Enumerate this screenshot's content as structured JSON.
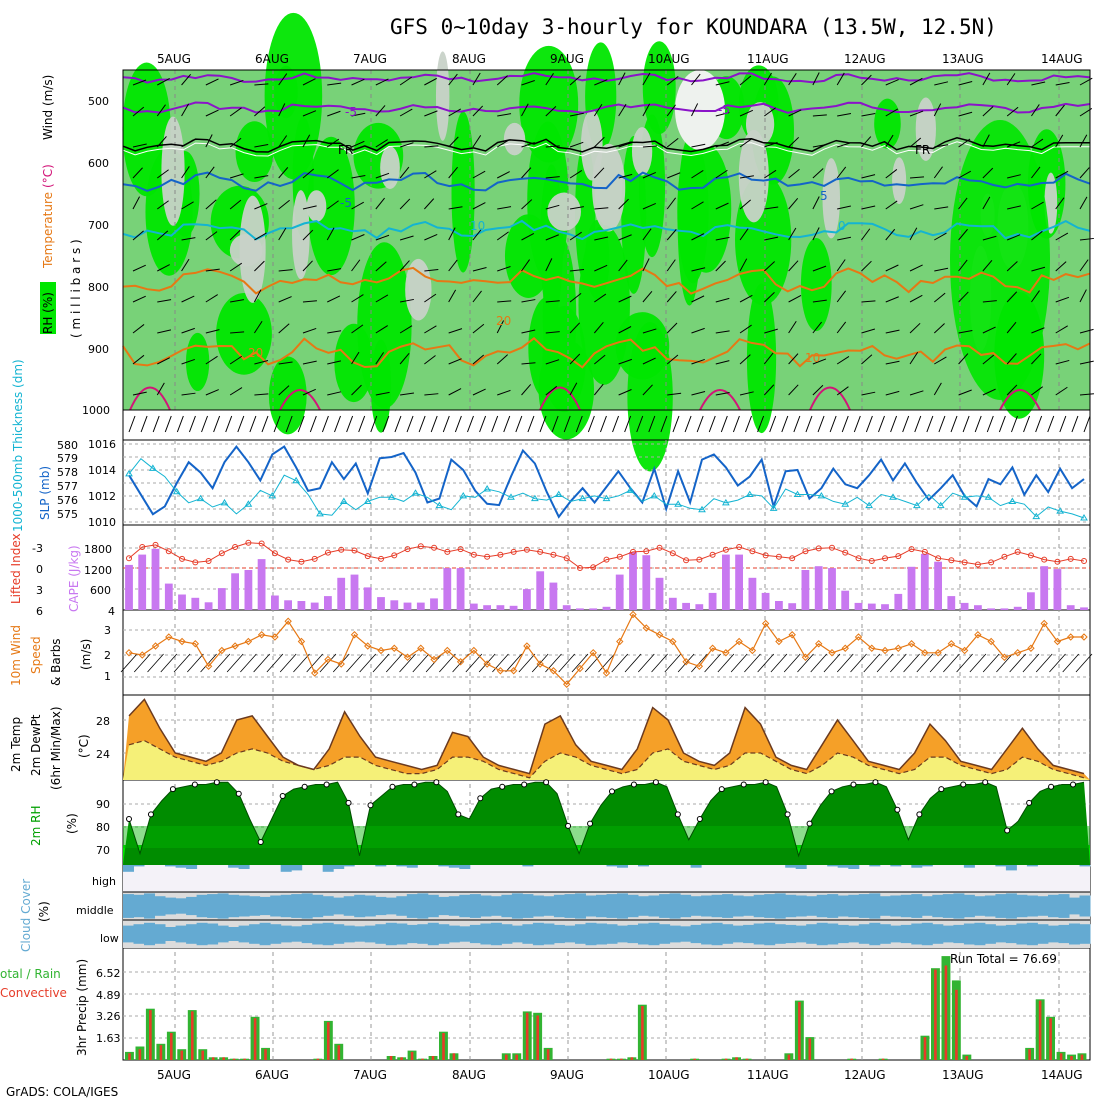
{
  "title": "GFS 0~10day 3-hourly for KOUNDARA (13.5W, 12.5N)",
  "footer": "GrADS: COLA/IGES",
  "dates": [
    "5AUG",
    "6AUG",
    "7AUG",
    "8AUG",
    "9AUG",
    "10AUG",
    "11AUG",
    "12AUG",
    "13AUG",
    "14AUG"
  ],
  "colors": {
    "rh_dark": "#00a000",
    "rh_mid": "#00e600",
    "rh_light": "#78d278",
    "rh_pale": "#c8d2c8",
    "purple": "#8a14c8",
    "orange": "#e67814",
    "cyan": "#14b4d2",
    "blue": "#1464c8",
    "magenta": "#d21478",
    "cape": "#c878f0",
    "tempfill": "#f5a028",
    "dewfill": "#f5f078",
    "cloud": "#64aad2",
    "cloudbg": "#dcdcdc",
    "rain": "#32b432",
    "conv": "#e63c28"
  },
  "panels": {
    "upper": {
      "ylabel_rh": "RH (%)",
      "ylabel_temp": "Temperature",
      "ylabel_tunit": "(°C)",
      "ylabel_wind": "Wind (m/s)",
      "ylabel_mb": "( m i l l i b a r s )",
      "yticks": [
        "500",
        "600",
        "700",
        "800",
        "900",
        "1000"
      ],
      "contour_labels": [
        "-5",
        "-5",
        "FR",
        "FR",
        "-5",
        "5",
        "10",
        "0",
        "10",
        "20",
        "20",
        "20",
        "10"
      ]
    },
    "slp": {
      "ylabel_thk": "1000-500mb Thickness (dm)",
      "ylabel_slp": "SLP (mb)",
      "thk_ticks": [
        "580",
        "579",
        "578",
        "577",
        "576",
        "575"
      ],
      "slp_ticks": [
        "1016",
        "1014",
        "1012",
        "1010"
      ]
    },
    "cape": {
      "ylabel_li": "Lifted Index",
      "ylabel_cape": "CAPE (J/kg)",
      "li_ticks": [
        "-3",
        "0",
        "3",
        "6"
      ],
      "cape_ticks": [
        "1800",
        "1200",
        "600",
        "4"
      ]
    },
    "wind10": {
      "ylabel1": "10m Wind",
      "ylabel2": "Speed",
      "ylabel3": "& Barbs",
      "ylabel4": "(m/s)",
      "ticks": [
        "3",
        "2",
        "1"
      ]
    },
    "temp": {
      "ylabel1": "2m Temp",
      "ylabel2": "2m DewPt",
      "ylabel3": "(6hr Min/Max)",
      "ylabel4": "(°C)",
      "ticks": [
        "28",
        "24"
      ]
    },
    "rh": {
      "ylabel1": "2m RH",
      "ylabel2": "(%)",
      "ticks": [
        "90",
        "80",
        "70"
      ]
    },
    "cloud": {
      "ylabel1": "Cloud Cover",
      "ylabel2": "(%)",
      "levels": [
        "high",
        "middle",
        "low"
      ]
    },
    "precip": {
      "ylabel1": "otal / Rain",
      "ylabel2": "Convective",
      "ylabel3": "3hr Precip (mm)",
      "ticks": [
        "6.52",
        "4.89",
        "3.26",
        "1.63"
      ],
      "run_total": "Run Total = 76.69"
    }
  },
  "chart_data": {
    "type": "meteogram",
    "x": "3-hourly steps, 4 Aug 21Z to 14 Aug 21Z",
    "series": [
      {
        "name": "SLP (mb)",
        "values": [
          1013.6,
          1012.1,
          1010.6,
          1011.2,
          1013.0,
          1014.6,
          1013.8,
          1012.6,
          1014.6,
          1015.8,
          1014.6,
          1013.2,
          1015.2,
          1015.8,
          1014.2,
          1012.4,
          1012.6,
          1014.6,
          1013.3,
          1014.5,
          1012.2,
          1014.9,
          1015.0,
          1015.3,
          1013.8,
          1011.5,
          1011.8,
          1014.8,
          1014.0,
          1012.4,
          1011.4,
          1011.3,
          1013.5,
          1015.5,
          1014.5,
          1012.3,
          1010.4,
          1011.6,
          1012.6,
          1011.5,
          1012.7,
          1013.9,
          1012.6,
          1011.5,
          1014.1,
          1011.0,
          1013.9,
          1011.5,
          1014.8,
          1015.2,
          1014.2,
          1012.8,
          1013.5,
          1014.8,
          1011.2,
          1013.9,
          1014.0,
          1011.8,
          1012.6,
          1014.1,
          1012.9,
          1012.6,
          1013.6,
          1014.8,
          1013.2,
          1014.5,
          1013.0,
          1011.7,
          1012.6,
          1013.6,
          1012.0,
          1011.2,
          1013.3,
          1012.9,
          1014.2,
          1012.1,
          1013.6,
          1012.3,
          1014.1,
          1012.6,
          1013.3
        ]
      },
      {
        "name": "1000-500mb Thickness (dm)",
        "values": [
          578.2,
          579.3,
          578.6,
          578.0,
          576.9,
          576.1,
          576.4,
          575.8,
          576.1,
          575.3,
          576.0,
          577.0,
          576.6,
          578.1,
          577.7,
          576.7,
          575.3,
          575.2,
          576.2,
          575.6,
          576.2,
          576.5,
          576.5,
          576.2,
          576.8,
          576.5,
          575.9,
          575.6,
          576.6,
          576.5,
          577.1,
          576.9,
          576.5,
          576.8,
          576.4,
          576.3,
          576.7,
          576.2,
          576.4,
          576.6,
          576.4,
          576.6,
          577.0,
          576.2,
          576.6,
          576.0,
          576.0,
          575.7,
          575.6,
          576.4,
          576.1,
          576.3,
          576.7,
          576.6,
          575.7,
          577.1,
          576.7,
          576.7,
          576.6,
          576.2,
          576.0,
          576.5,
          575.9,
          576.7,
          576.5,
          576.2,
          575.9,
          576.7,
          575.9,
          576.8,
          576.5,
          576.6,
          576.5,
          575.9,
          576.2,
          576.0,
          575.1,
          575.8,
          575.5,
          575.3,
          575.0
        ]
      },
      {
        "name": "CAPE (J/kg)",
        "values": [
          1400,
          1720,
          1900,
          820,
          480,
          380,
          240,
          680,
          1140,
          1240,
          1580,
          450,
          300,
          280,
          230,
          430,
          1000,
          1100,
          700,
          400,
          300,
          230,
          230,
          360,
          1300,
          1300,
          200,
          150,
          150,
          130,
          650,
          1200,
          850,
          150,
          50,
          50,
          100,
          1100,
          1800,
          1700,
          1000,
          380,
          220,
          180,
          530,
          1720,
          1720,
          1000,
          530,
          280,
          210,
          1240,
          1360,
          1300,
          600,
          220,
          200,
          180,
          500,
          1340,
          1740,
          1500,
          430,
          220,
          150,
          50,
          50,
          100,
          550,
          1360,
          1270,
          150,
          80
        ]
      },
      {
        "name": "Lifted Index",
        "values": [
          -1.4,
          -3.0,
          -3.3,
          -2.4,
          -1.3,
          -0.8,
          -1.0,
          -2.1,
          -3.0,
          -3.6,
          -3.5,
          -2.1,
          -1.2,
          -0.9,
          -1.3,
          -2.2,
          -2.6,
          -2.5,
          -1.7,
          -1.3,
          -1.8,
          -2.7,
          -3.1,
          -2.9,
          -2.3,
          -2.7,
          -1.9,
          -1.6,
          -1.9,
          -2.3,
          -2.6,
          -2.3,
          -1.9,
          -1.4,
          0.0,
          -0.1,
          -1.2,
          -1.6,
          -2.3,
          -2.4,
          -2.9,
          -2.1,
          -1.1,
          -1.2,
          -1.9,
          -2.6,
          -3.0,
          -2.4,
          -1.8,
          -1.6,
          -1.4,
          -2.4,
          -2.8,
          -2.9,
          -2.2,
          -1.4,
          -1.0,
          -1.4,
          -1.7,
          -2.7,
          -2.3,
          -1.4,
          -1.1,
          -0.8,
          -0.5,
          -0.8,
          -1.6,
          -2.3,
          -1.8,
          -1.2,
          -0.9,
          -1.3,
          -1.0
        ]
      },
      {
        "name": "10m Wind Speed (m/s)",
        "values": [
          2.1,
          2.0,
          2.4,
          2.8,
          2.6,
          2.5,
          1.5,
          2.2,
          2.4,
          2.6,
          2.9,
          2.8,
          3.5,
          2.6,
          1.2,
          1.8,
          1.6,
          2.9,
          2.4,
          2.2,
          2.3,
          1.9,
          2.3,
          1.8,
          2.2,
          1.7,
          2.2,
          1.6,
          1.3,
          1.3,
          2.4,
          1.6,
          1.3,
          0.7,
          1.4,
          2.1,
          1.2,
          2.6,
          3.8,
          3.2,
          2.9,
          2.6,
          1.7,
          1.5,
          2.3,
          2.1,
          2.6,
          2.2,
          3.4,
          2.6,
          2.9,
          1.9,
          2.5,
          2.1,
          2.3,
          2.8,
          2.3,
          2.2,
          2.3,
          2.5,
          2.1,
          2.1,
          2.5,
          2.2,
          2.9,
          2.6,
          1.9,
          2.1,
          2.3,
          3.4,
          2.6,
          2.8,
          2.8
        ]
      },
      {
        "name": "2m Temp (°C)",
        "values": [
          28.5,
          30.5,
          27.0,
          24.0,
          23.5,
          23.0,
          24.0,
          28.0,
          28.5,
          26.0,
          23.5,
          22.5,
          22.0,
          24.5,
          29.0,
          26.0,
          23.5,
          23.0,
          22.5,
          22.0,
          22.5,
          26.5,
          26.0,
          23.5,
          22.5,
          22.0,
          21.5,
          27.5,
          28.5,
          25.0,
          23.0,
          22.5,
          22.0,
          24.5,
          29.5,
          28.0,
          24.0,
          23.0,
          22.5,
          24.0,
          29.5,
          27.5,
          23.5,
          22.5,
          22.0,
          25.0,
          28.0,
          25.5,
          23.0,
          22.5,
          22.0,
          24.0,
          27.5,
          25.5,
          23.0,
          22.5,
          22.0,
          24.5,
          27.0,
          24.5,
          22.5,
          22.0,
          21.5
        ]
      },
      {
        "name": "2m DewPt (°C)",
        "values": [
          25.0,
          25.5,
          24.5,
          23.5,
          23.0,
          22.5,
          23.0,
          24.0,
          24.5,
          24.0,
          23.0,
          22.5,
          22.0,
          22.5,
          23.5,
          23.5,
          22.5,
          22.0,
          21.5,
          21.5,
          22.0,
          23.5,
          23.5,
          23.0,
          22.0,
          21.5,
          21.0,
          23.0,
          24.0,
          23.5,
          22.5,
          22.0,
          21.5,
          22.0,
          24.0,
          24.5,
          23.0,
          22.5,
          22.0,
          22.5,
          24.0,
          24.0,
          23.0,
          22.0,
          21.5,
          22.5,
          24.0,
          23.5,
          22.5,
          22.0,
          21.5,
          22.0,
          23.5,
          23.5,
          22.5,
          22.0,
          21.5,
          22.0,
          23.5,
          23.0,
          22.0,
          21.5,
          21.0
        ]
      },
      {
        "name": "2m RH (%)",
        "values": [
          82,
          67,
          84,
          90,
          95,
          96,
          97,
          97,
          98,
          98,
          93,
          82,
          72,
          82,
          92,
          95,
          96,
          97,
          97,
          98,
          89,
          66,
          88,
          92,
          96,
          97,
          97,
          98,
          98,
          94,
          84,
          82,
          91,
          95,
          96,
          97,
          97,
          98,
          98,
          93,
          79,
          67,
          80,
          88,
          94,
          96,
          97,
          97,
          98,
          96,
          84,
          73,
          82,
          90,
          95,
          96,
          97,
          97,
          98,
          96,
          84,
          66,
          80,
          88,
          94,
          96,
          97,
          97,
          98,
          96,
          86,
          73,
          84,
          91,
          95,
          96,
          97,
          97,
          98,
          96,
          77,
          81,
          89,
          94,
          96,
          97,
          97,
          98
        ]
      },
      {
        "name": "3hr Precip Total (mm)",
        "values": [
          0.6,
          1.0,
          3.8,
          1.2,
          2.1,
          0.8,
          3.7,
          0.8,
          0.2,
          0.2,
          0.1,
          0.1,
          3.2,
          0.9,
          0.0,
          0.0,
          0.0,
          0.0,
          0.1,
          2.9,
          1.2,
          0.0,
          0.0,
          0.0,
          0.0,
          0.3,
          0.2,
          0.7,
          0.1,
          0.3,
          2.1,
          0.5,
          0.0,
          0.0,
          0.0,
          0.0,
          0.5,
          0.5,
          3.6,
          3.5,
          0.9,
          0.0,
          0.0,
          0.0,
          0.0,
          0.0,
          0.1,
          0.1,
          0.2,
          4.1,
          0.0,
          0.0,
          0.0,
          0.0,
          0.1,
          0.0,
          0.0,
          0.1,
          0.2,
          0.1,
          0.0,
          0.0,
          0.0,
          0.5,
          4.4,
          1.7,
          0.0,
          0.0,
          0.0,
          0.1,
          0.0,
          0.0,
          0.1,
          0.0,
          0.0,
          0.0,
          1.8,
          6.8,
          7.7,
          5.9,
          0.4,
          0.0,
          0.0,
          0.0,
          0.0,
          0.0,
          0.9,
          4.5,
          3.2,
          0.6,
          0.4,
          0.5
        ]
      },
      {
        "name": "3hr Precip Convective (mm)",
        "values": [
          0.5,
          0.8,
          3.7,
          1.1,
          2.0,
          0.7,
          3.6,
          0.7,
          0.2,
          0.2,
          0.1,
          0.1,
          3.1,
          0.8,
          0.0,
          0.0,
          0.0,
          0.0,
          0.1,
          2.8,
          1.1,
          0.0,
          0.0,
          0.0,
          0.0,
          0.3,
          0.2,
          0.6,
          0.1,
          0.3,
          2.0,
          0.5,
          0.0,
          0.0,
          0.0,
          0.0,
          0.4,
          0.4,
          3.5,
          3.3,
          0.8,
          0.0,
          0.0,
          0.0,
          0.0,
          0.0,
          0.1,
          0.1,
          0.2,
          4.0,
          0.0,
          0.0,
          0.0,
          0.0,
          0.1,
          0.0,
          0.0,
          0.1,
          0.2,
          0.1,
          0.0,
          0.0,
          0.0,
          0.4,
          4.3,
          1.6,
          0.0,
          0.0,
          0.0,
          0.1,
          0.0,
          0.0,
          0.1,
          0.0,
          0.0,
          0.0,
          1.7,
          6.7,
          7.0,
          5.2,
          0.3,
          0.0,
          0.0,
          0.0,
          0.0,
          0.0,
          0.8,
          4.4,
          3.1,
          0.5,
          0.3,
          0.4
        ]
      },
      {
        "name": "high cloud (%)",
        "values": [
          25,
          5,
          0,
          0,
          5,
          10,
          15,
          0,
          0,
          0,
          10,
          15,
          0,
          0,
          0,
          25,
          20,
          0,
          0,
          25,
          15,
          5,
          0,
          0,
          5,
          0,
          5,
          10,
          0,
          0,
          5,
          10,
          15,
          0,
          0,
          0,
          0,
          0,
          5,
          0,
          0,
          0,
          0,
          0,
          0,
          0,
          5,
          10,
          0,
          5,
          0,
          0,
          0,
          0,
          10,
          0,
          0,
          0,
          0,
          0,
          0,
          0,
          0,
          10,
          15,
          0,
          0,
          5,
          10,
          15,
          0,
          5,
          0,
          5,
          0,
          10,
          5,
          0,
          0,
          0,
          10,
          0,
          0,
          5,
          20,
          0,
          5,
          0,
          0,
          0,
          0,
          5
        ]
      },
      {
        "name": "middle cloud (%)",
        "values": [
          85,
          80,
          90,
          70,
          60,
          55,
          65,
          80,
          85,
          90,
          80,
          75,
          70,
          65,
          75,
          80,
          85,
          90,
          80,
          70,
          60,
          70,
          80,
          75,
          65,
          60,
          70,
          85,
          90,
          80,
          65,
          70,
          80,
          85,
          75,
          70,
          80,
          90,
          85,
          75,
          70,
          80,
          85,
          90,
          75,
          80,
          85,
          90,
          80,
          70,
          75,
          85,
          90,
          80,
          70,
          75,
          80,
          85,
          75,
          70,
          80,
          85,
          90,
          80,
          75,
          70,
          80,
          85,
          75,
          80,
          85,
          90,
          70,
          75,
          80,
          85,
          70,
          80,
          85,
          90,
          80,
          70,
          75,
          85,
          90,
          80,
          75,
          70,
          80,
          85,
          60,
          75
        ]
      },
      {
        "name": "low cloud (%)",
        "values": [
          60,
          70,
          80,
          70,
          50,
          60,
          70,
          80,
          75,
          60,
          50,
          60,
          70,
          80,
          70,
          60,
          55,
          65,
          75,
          80,
          70,
          60,
          55,
          60,
          70,
          80,
          75,
          65,
          70,
          80,
          70,
          60,
          55,
          65,
          75,
          80,
          70,
          60,
          70,
          80,
          75,
          65,
          60,
          70,
          80,
          75,
          70,
          60,
          65,
          75,
          80,
          70,
          60,
          55,
          65,
          75,
          80,
          70,
          60,
          65,
          75,
          80,
          70,
          65,
          60,
          70,
          80,
          75,
          65,
          60,
          70,
          80,
          70,
          60,
          65,
          75,
          80,
          70,
          60,
          65,
          75,
          80,
          70,
          60,
          65,
          75,
          80,
          70,
          60,
          65,
          75,
          70
        ]
      }
    ]
  }
}
